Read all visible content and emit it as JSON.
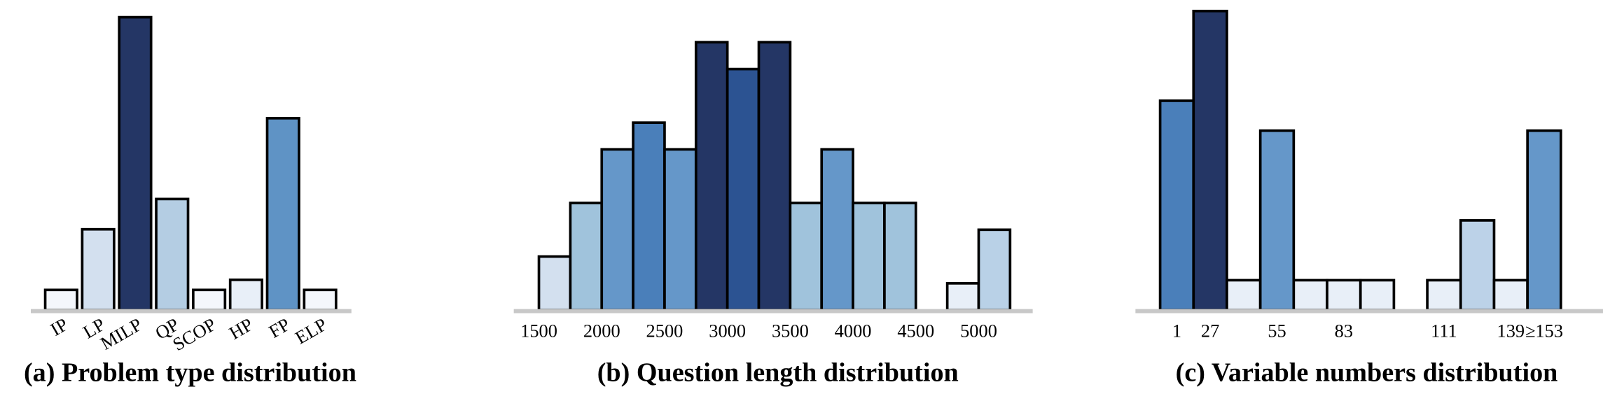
{
  "chart_data": [
    {
      "type": "bar",
      "title": "(a) Problem type distribution",
      "categories": [
        "IP",
        "LP",
        "MILP",
        "QP",
        "SCOP",
        "HP",
        "FP",
        "ELP"
      ],
      "values": [
        2,
        8,
        29,
        11,
        2,
        3,
        19,
        2
      ],
      "colors": [
        "#f4f7fc",
        "#d3e0ef",
        "#243665",
        "#b4cde3",
        "#f4f7fc",
        "#e8eff8",
        "#5f93c5",
        "#f4f7fc"
      ],
      "ylim": [
        0,
        30.5
      ]
    },
    {
      "type": "histogram",
      "title": "(b) Question length distribution",
      "bins": [
        1500,
        1750,
        2000,
        2250,
        2500,
        2750,
        3000,
        3250,
        3500,
        3750,
        4000,
        4250,
        4500,
        4750,
        5000,
        5250
      ],
      "counts": [
        2,
        4,
        6,
        7,
        6,
        10,
        9,
        10,
        4,
        6,
        4,
        4,
        0,
        1,
        3
      ],
      "colors": [
        "#d3e0ef",
        "#a0c3dc",
        "#6597c9",
        "#4a7fba",
        "#6597c9",
        "#243665",
        "#2c5392",
        "#243665",
        "#a0c3dc",
        "#6597c9",
        "#a0c3dc",
        "#a0c3dc",
        "#ffffff",
        "#e8eff8",
        "#b9d1e7"
      ],
      "xlim": [
        1300,
        5430
      ],
      "xticks": [
        1500,
        2000,
        2500,
        3000,
        3500,
        4000,
        4500,
        5000
      ],
      "ylim": [
        0,
        11.5
      ]
    },
    {
      "type": "bar",
      "title": "(c) Variable numbers distribution",
      "categories": [
        "1",
        "27",
        null,
        "55",
        null,
        "83",
        null,
        null,
        "111",
        null,
        "139",
        "≥153"
      ],
      "values": [
        7,
        10,
        1,
        6,
        1,
        1,
        1,
        0,
        1,
        3,
        1,
        6
      ],
      "colors": [
        "#4a7fba",
        "#243665",
        "#e8eff8",
        "#6597c9",
        "#e8eff8",
        "#e8eff8",
        "#e8eff8",
        "#ffffff",
        "#e8eff8",
        "#bcd2e8",
        "#e8eff8",
        "#6597c9"
      ],
      "ylim": [
        0,
        10.3
      ]
    }
  ]
}
